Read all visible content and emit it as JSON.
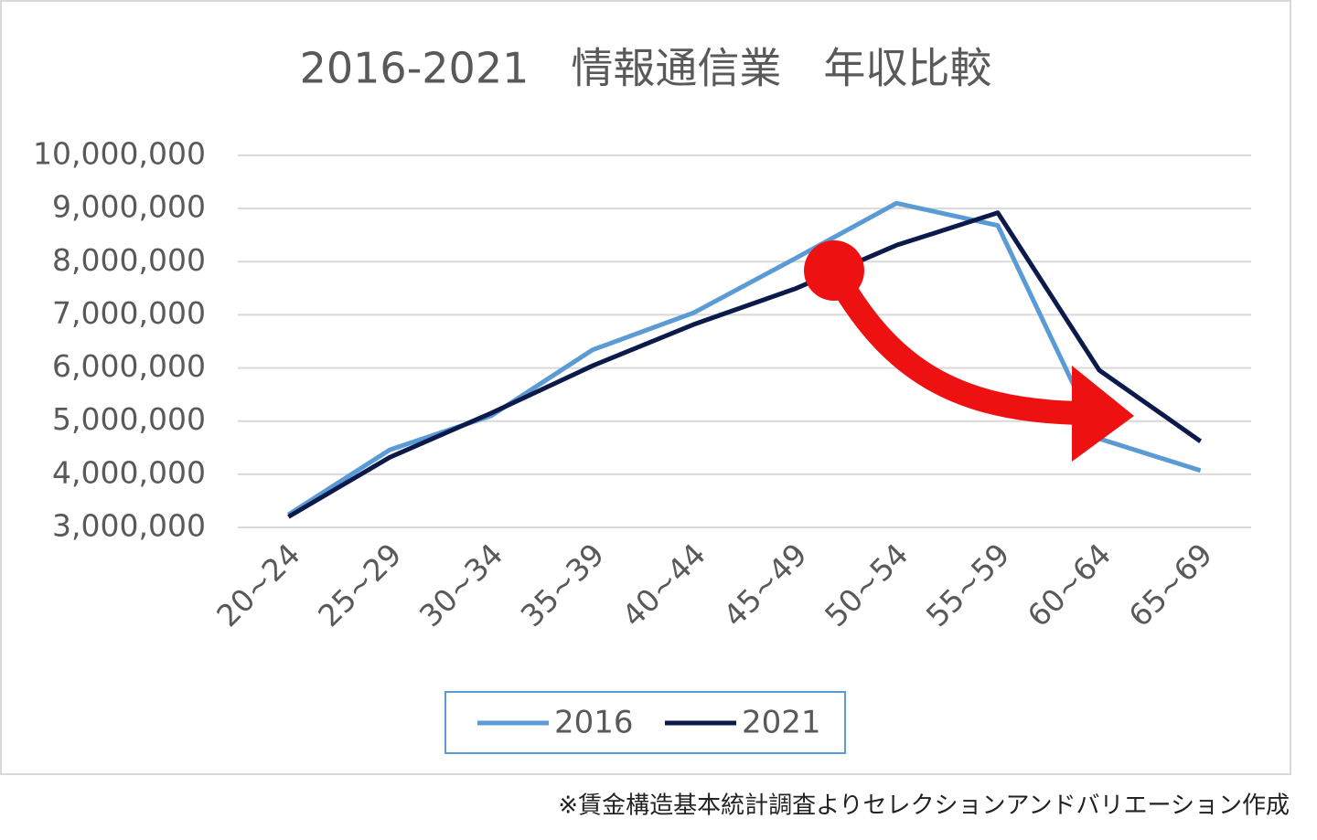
{
  "chart_data": {
    "type": "line",
    "title": "2016-2021　情報通信業　年収比較",
    "categories": [
      "20~24",
      "25~29",
      "30~34",
      "35~39",
      "40~44",
      "45~49",
      "50~54",
      "55~59",
      "60~64",
      "65~69"
    ],
    "series": [
      {
        "name": "2016",
        "color": "#5b9bd5",
        "values": [
          3240000,
          4460000,
          5100000,
          6340000,
          7040000,
          8060000,
          9100000,
          8680000,
          4670000,
          4070000
        ]
      },
      {
        "name": "2021",
        "color": "#0b1a4b",
        "values": [
          3200000,
          4320000,
          5150000,
          6040000,
          6820000,
          7490000,
          8310000,
          8920000,
          5960000,
          4620000
        ]
      }
    ],
    "ylim": [
      3000000,
      10000000
    ],
    "yticks": [
      {
        "value": 3000000,
        "label": "3,000,000"
      },
      {
        "value": 4000000,
        "label": "4,000,000"
      },
      {
        "value": 5000000,
        "label": "5,000,000"
      },
      {
        "value": 6000000,
        "label": "6,000,000"
      },
      {
        "value": 7000000,
        "label": "7,000,000"
      },
      {
        "value": 8000000,
        "label": "8,000,000"
      },
      {
        "value": 9000000,
        "label": "9,000,000"
      },
      {
        "value": 10000000,
        "label": "10,000,000"
      }
    ],
    "grid": true,
    "legend": "bottom",
    "note": "※賃金構造基本統計調査よりセレクションアンドバリエーション作成"
  }
}
